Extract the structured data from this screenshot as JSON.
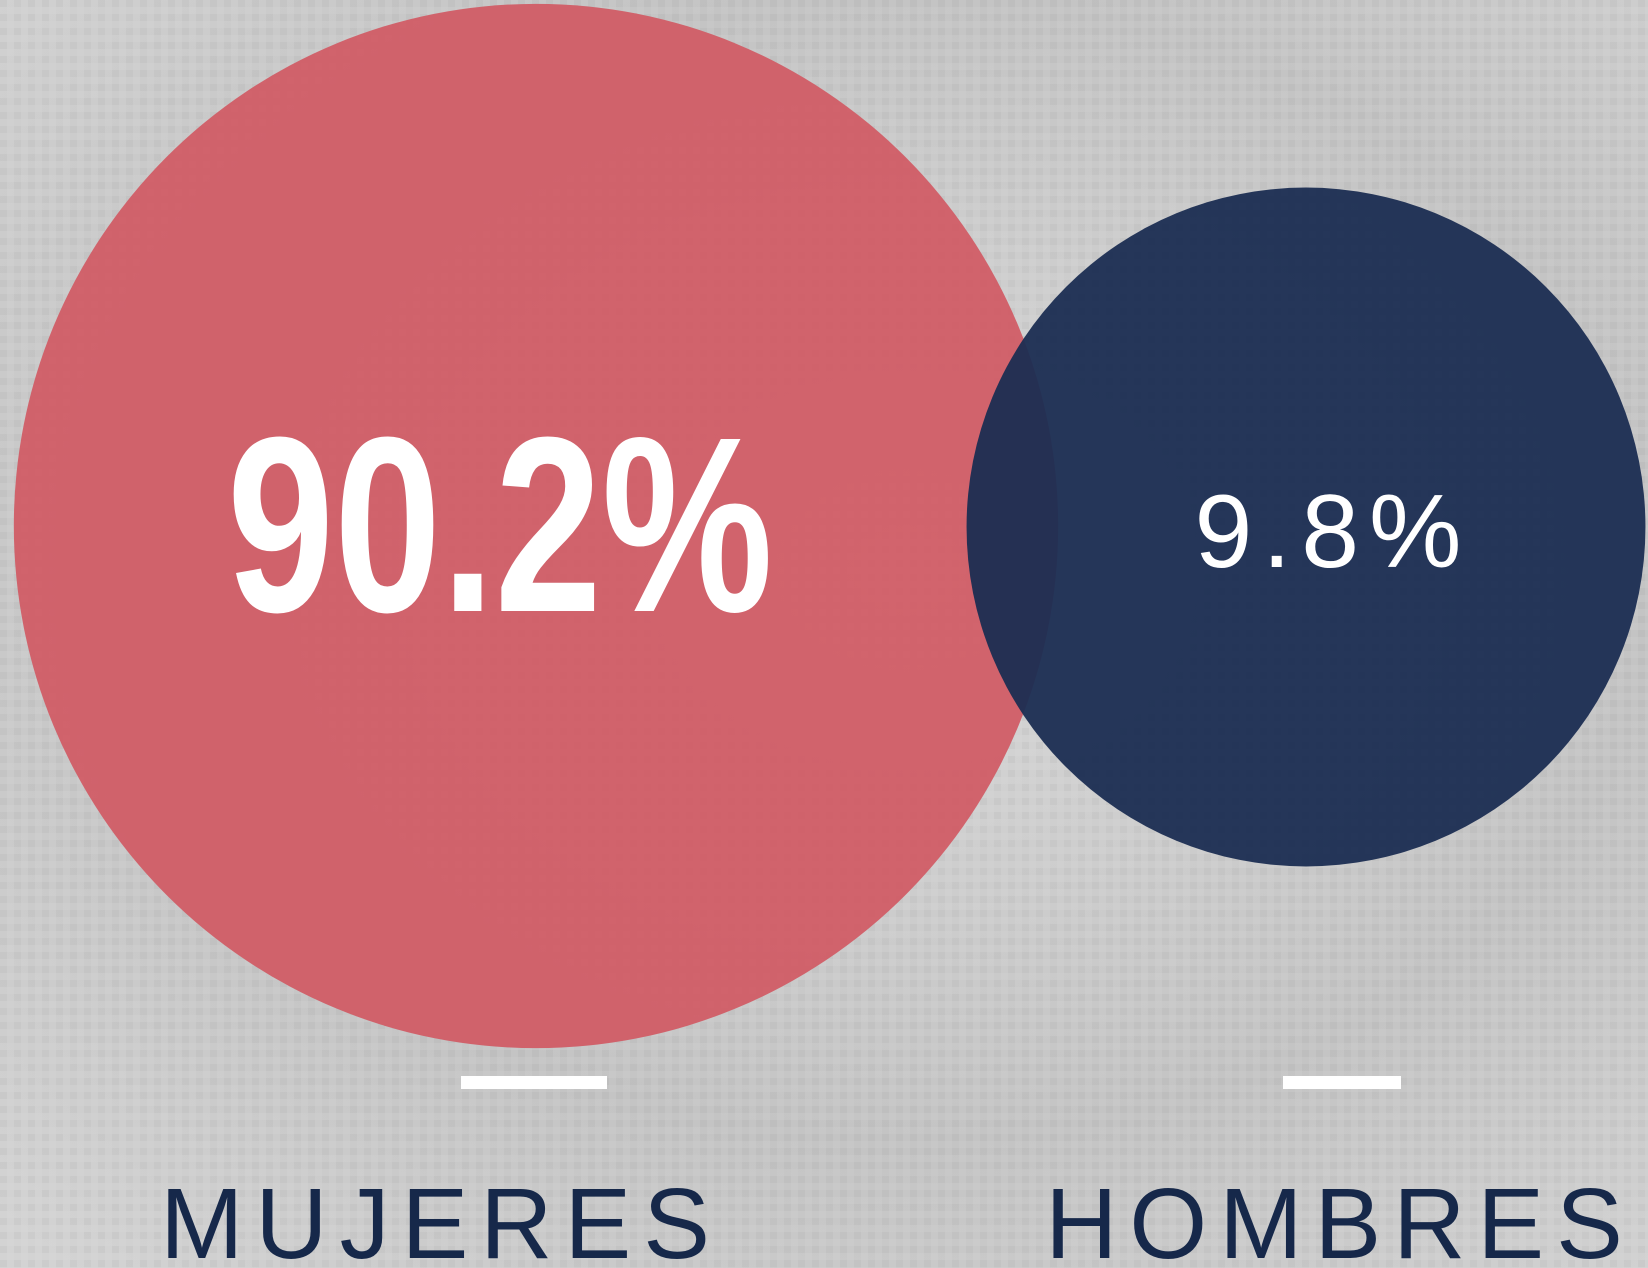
{
  "chart_data": {
    "type": "bubble",
    "categories": [
      "MUJERES",
      "HOMBRES"
    ],
    "values": [
      90.2,
      9.8
    ],
    "value_labels": [
      "90.2%",
      "9.8%"
    ],
    "colors": [
      "#d15a64",
      "#1b2d52"
    ]
  }
}
